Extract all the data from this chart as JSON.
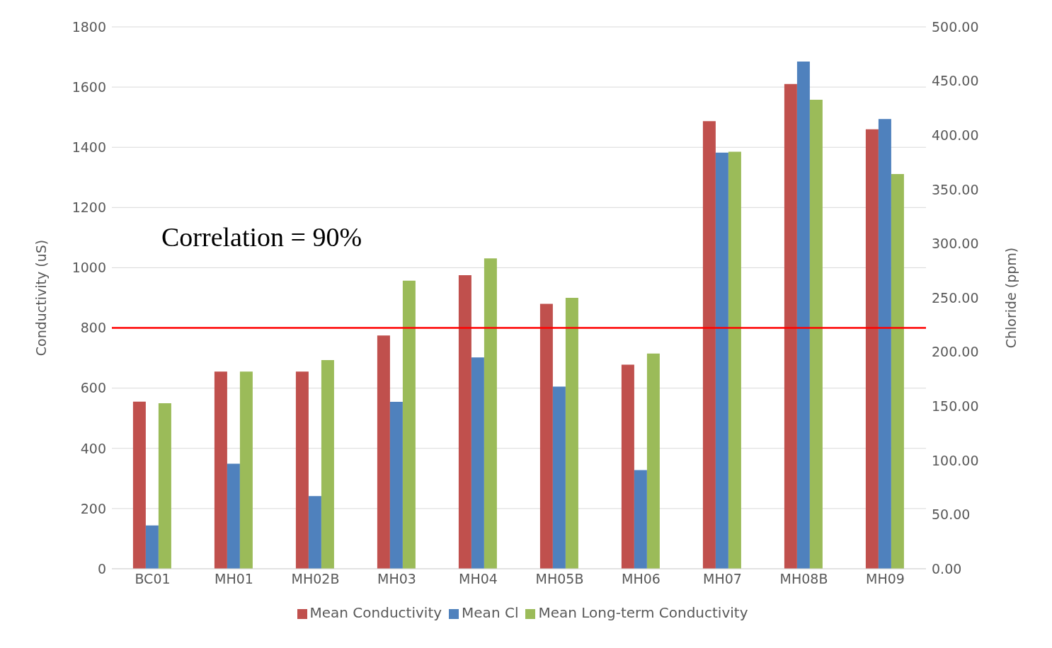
{
  "chart_data": {
    "type": "bar",
    "categories": [
      "BC01",
      "MH01",
      "MH02B",
      "MH03",
      "MH04",
      "MH05B",
      "MH06",
      "MH07",
      "MH08B",
      "MH09"
    ],
    "series": [
      {
        "name": "Mean Conductivity",
        "color": "#c0504d",
        "values": [
          555,
          655,
          655,
          775,
          975,
          880,
          678,
          1487,
          1610,
          1460
        ]
      },
      {
        "name": "Mean Cl",
        "color": "#4f81bd",
        "axis": "y2",
        "values": [
          40,
          97,
          67,
          154,
          195,
          168,
          91,
          384,
          468,
          415
        ]
      },
      {
        "name": "Mean Long-term Conductivity",
        "color": "#9bbb59",
        "values": [
          550,
          655,
          693,
          957,
          1031,
          900,
          715,
          1385,
          1558,
          1311
        ]
      }
    ],
    "ylabel": "Conductivity (uS)",
    "y2label": "Chloride (ppm)",
    "ylim": [
      0,
      1800
    ],
    "yticks": [
      0,
      200,
      400,
      600,
      800,
      1000,
      1200,
      1400,
      1600,
      1800
    ],
    "y2lim": [
      0,
      500
    ],
    "y2ticks": [
      {
        "value": 0,
        "label": "0.00"
      },
      {
        "value": 50,
        "label": "50.00"
      },
      {
        "value": 100,
        "label": "100.00"
      },
      {
        "value": 150,
        "label": "150.00"
      },
      {
        "value": 200,
        "label": "200.00"
      },
      {
        "value": 250,
        "label": "250.00"
      },
      {
        "value": 300,
        "label": "300.00"
      },
      {
        "value": 350,
        "label": "350.00"
      },
      {
        "value": 400,
        "label": "400.00"
      },
      {
        "value": 450,
        "label": "450.00"
      },
      {
        "value": 500,
        "label": "500.00"
      }
    ],
    "ref_lines": [
      {
        "axis": "y",
        "value": 800,
        "color": "#ff0000"
      }
    ],
    "annotations": [
      "Correlation = 90%"
    ],
    "grid": "y",
    "legend": "bottom"
  }
}
